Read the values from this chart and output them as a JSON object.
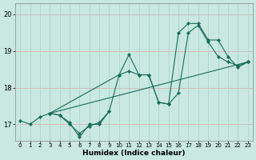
{
  "xlabel": "Humidex (Indice chaleur)",
  "bg_color": "#c8e8e0",
  "grid_color": "#aad4cc",
  "line_color": "#1a6b5a",
  "xlim": [
    -0.5,
    23.5
  ],
  "ylim": [
    16.55,
    20.3
  ],
  "yticks": [
    17,
    18,
    19,
    20
  ],
  "xticks": [
    0,
    1,
    2,
    3,
    4,
    5,
    6,
    7,
    8,
    9,
    10,
    11,
    12,
    13,
    14,
    15,
    16,
    17,
    18,
    19,
    20,
    21,
    22,
    23
  ],
  "series": [
    {
      "x": [
        0,
        1,
        2,
        3,
        4,
        5,
        6,
        7,
        8,
        9
      ],
      "y": [
        17.1,
        17.0,
        17.2,
        17.3,
        17.25,
        17.05,
        16.65,
        17.0,
        17.0,
        17.35
      ]
    },
    {
      "x": [
        3,
        4,
        5,
        6,
        7,
        8,
        9,
        10,
        11,
        12,
        13,
        14,
        15,
        16,
        17,
        18,
        19,
        20,
        21,
        22,
        23
      ],
      "y": [
        17.3,
        17.25,
        17.0,
        16.75,
        16.95,
        17.05,
        17.35,
        18.35,
        18.9,
        18.35,
        18.35,
        17.6,
        17.55,
        17.85,
        19.5,
        19.7,
        19.25,
        18.85,
        18.7,
        18.6,
        18.7
      ]
    },
    {
      "x": [
        3,
        10,
        11,
        12,
        13,
        14,
        15,
        16,
        17,
        18,
        19,
        20,
        21,
        22,
        23
      ],
      "y": [
        17.3,
        18.35,
        18.45,
        18.35,
        18.35,
        17.6,
        17.55,
        19.5,
        19.75,
        19.75,
        19.3,
        19.3,
        18.85,
        18.55,
        18.7
      ]
    },
    {
      "x": [
        3,
        23
      ],
      "y": [
        17.3,
        18.7
      ]
    }
  ]
}
